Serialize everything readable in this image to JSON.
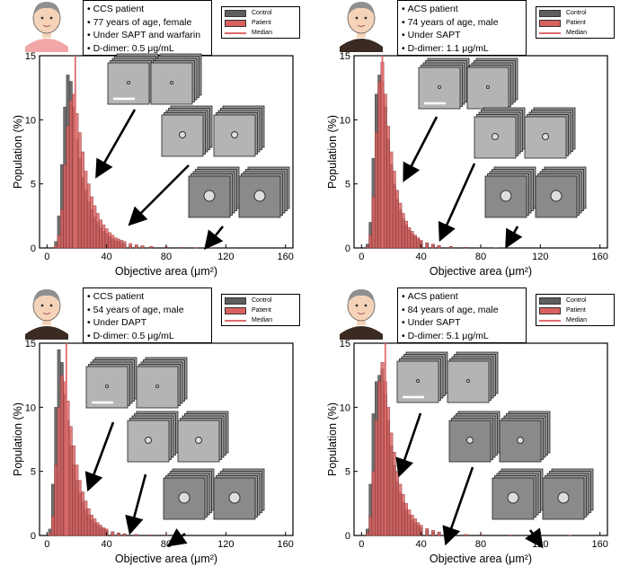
{
  "colors": {
    "control": "#5e5e5e",
    "patient": "#d9605f",
    "patient_edge": "#8a2c2c",
    "median": "#e06b6b",
    "cell_image": "#b4b4b4",
    "cell_image_dark": "#8a8a8a"
  },
  "legend": {
    "control": "Control",
    "patient": "Patient",
    "median": "Median"
  },
  "icons": [
    "elderly-woman-avatar-icon",
    "man-avatar-icon",
    "elderly-man-avatar-icon",
    "elderly-man-avatar-icon"
  ],
  "chart_data": [
    {
      "type": "bar",
      "info": [
        "CCS patient",
        "77 years of age, female",
        "Under SAPT and warfarin",
        "D-dimer: 0.5 μg/mL"
      ],
      "xlabel": "Objective area (μm²)",
      "ylabel": "Population (%)",
      "xlim": [
        -5,
        165
      ],
      "ylim": [
        0,
        15
      ],
      "xticks": [
        0,
        40,
        80,
        120,
        160
      ],
      "yticks": [
        0,
        5,
        10,
        15
      ],
      "bin_width": 2,
      "median": 19,
      "series": [
        {
          "name": "Control",
          "x": [
            6,
            8,
            10,
            12,
            14,
            16,
            18,
            20,
            22,
            24,
            26,
            28,
            30,
            32,
            34,
            36,
            38,
            40,
            42,
            44,
            46,
            48,
            50,
            52,
            56,
            60,
            64,
            70,
            80,
            90,
            100
          ],
          "values": [
            0.5,
            2.5,
            6.5,
            11.0,
            13.5,
            13.0,
            11.0,
            8.5,
            7.0,
            5.5,
            4.5,
            3.6,
            3.0,
            2.4,
            2.0,
            1.6,
            1.3,
            1.1,
            0.9,
            0.7,
            0.6,
            0.5,
            0.4,
            0.3,
            0.2,
            0.15,
            0.1,
            0.08,
            0.05,
            0.03,
            0.02
          ]
        },
        {
          "name": "Patient",
          "x": [
            6,
            8,
            10,
            12,
            14,
            16,
            18,
            20,
            22,
            24,
            26,
            28,
            30,
            32,
            34,
            36,
            38,
            40,
            42,
            44,
            46,
            48,
            50,
            52,
            56,
            60,
            64,
            70,
            80,
            90,
            100,
            110
          ],
          "values": [
            0.2,
            1.0,
            3.0,
            6.5,
            9.5,
            11.5,
            12.0,
            10.5,
            9.0,
            7.5,
            6.0,
            5.0,
            4.0,
            3.3,
            2.7,
            2.2,
            1.8,
            1.5,
            1.2,
            1.0,
            0.8,
            0.7,
            0.6,
            0.5,
            0.35,
            0.25,
            0.18,
            0.12,
            0.08,
            0.05,
            0.03,
            0.02
          ]
        }
      ]
    },
    {
      "type": "bar",
      "info": [
        "ACS patient",
        "74 years of age, male",
        "Under SAPT",
        "D-dimer: 1.1 μg/mL"
      ],
      "xlabel": "Objective area (μm²)",
      "ylabel": "Population (%)",
      "xlim": [
        -5,
        165
      ],
      "ylim": [
        0,
        15
      ],
      "xticks": [
        0,
        40,
        80,
        120,
        160
      ],
      "yticks": [
        0,
        5,
        10,
        15
      ],
      "bin_width": 2,
      "median": 14,
      "series": [
        {
          "name": "Control",
          "x": [
            4,
            6,
            8,
            10,
            12,
            14,
            16,
            18,
            20,
            22,
            24,
            26,
            28,
            30,
            32,
            34,
            36,
            38,
            40,
            44,
            48,
            52,
            60,
            70,
            80
          ],
          "values": [
            0.3,
            2.0,
            7.0,
            12.0,
            13.5,
            13.0,
            11.0,
            8.5,
            6.5,
            5.0,
            3.8,
            3.0,
            2.3,
            1.8,
            1.4,
            1.1,
            0.9,
            0.7,
            0.5,
            0.35,
            0.25,
            0.15,
            0.1,
            0.05,
            0.02
          ]
        },
        {
          "name": "Patient",
          "x": [
            4,
            6,
            8,
            10,
            12,
            14,
            16,
            18,
            20,
            22,
            24,
            26,
            28,
            30,
            32,
            34,
            36,
            38,
            40,
            44,
            48,
            52,
            60,
            70,
            80,
            90
          ],
          "values": [
            0.1,
            1.0,
            4.0,
            9.0,
            13.0,
            14.5,
            12.0,
            9.5,
            7.5,
            6.0,
            4.5,
            3.5,
            2.7,
            2.1,
            1.6,
            1.3,
            1.0,
            0.8,
            0.6,
            0.4,
            0.3,
            0.2,
            0.12,
            0.06,
            0.03,
            0.02
          ]
        }
      ]
    },
    {
      "type": "bar",
      "info": [
        "CCS patient",
        "54 years of age, male",
        "Under DAPT",
        "D-dimer: 0.5 μg/mL"
      ],
      "xlabel": "Objective area (μm²)",
      "ylabel": "Population (%)",
      "xlim": [
        -5,
        165
      ],
      "ylim": [
        0,
        15
      ],
      "xticks": [
        0,
        40,
        80,
        120,
        160
      ],
      "yticks": [
        0,
        5,
        10,
        15
      ],
      "bin_width": 2,
      "median": 13,
      "series": [
        {
          "name": "Control",
          "x": [
            2,
            4,
            6,
            8,
            10,
            12,
            14,
            16,
            18,
            20,
            22,
            24,
            26,
            28,
            30,
            32,
            34,
            36,
            38,
            40,
            44,
            48,
            52,
            60,
            70
          ],
          "values": [
            0.5,
            4.0,
            10.0,
            14.5,
            13.5,
            11.0,
            9.0,
            7.0,
            5.5,
            4.3,
            3.3,
            2.6,
            2.0,
            1.6,
            1.2,
            1.0,
            0.8,
            0.6,
            0.5,
            0.4,
            0.25,
            0.18,
            0.12,
            0.06,
            0.03
          ]
        },
        {
          "name": "Patient",
          "x": [
            2,
            4,
            6,
            8,
            10,
            12,
            14,
            16,
            18,
            20,
            22,
            24,
            26,
            28,
            30,
            32,
            34,
            36,
            38,
            40,
            44,
            48,
            52,
            60,
            70,
            80
          ],
          "values": [
            0.2,
            1.5,
            5.5,
            10.0,
            12.5,
            12.0,
            10.5,
            8.5,
            7.0,
            5.5,
            4.3,
            3.4,
            2.7,
            2.1,
            1.6,
            1.3,
            1.0,
            0.8,
            0.6,
            0.5,
            0.3,
            0.2,
            0.14,
            0.08,
            0.04,
            0.02
          ]
        }
      ]
    },
    {
      "type": "bar",
      "info": [
        "ACS patient",
        "84 years of age, male",
        "Under SAPT",
        "D-dimer: 5.1 μg/mL"
      ],
      "xlabel": "Objective area (μm²)",
      "ylabel": "Population (%)",
      "xlim": [
        -5,
        165
      ],
      "ylim": [
        0,
        15
      ],
      "xticks": [
        0,
        40,
        80,
        120,
        160
      ],
      "yticks": [
        0,
        5,
        10,
        15
      ],
      "bin_width": 2,
      "median": 16,
      "series": [
        {
          "name": "Control",
          "x": [
            4,
            6,
            8,
            10,
            12,
            14,
            16,
            18,
            20,
            22,
            24,
            26,
            28,
            30,
            32,
            34,
            36,
            38,
            40,
            44,
            48,
            52,
            60,
            70,
            80
          ],
          "values": [
            0.5,
            4.0,
            9.5,
            12.0,
            12.5,
            13.0,
            11.0,
            9.0,
            7.0,
            5.5,
            4.2,
            3.3,
            2.6,
            2.0,
            1.6,
            1.2,
            1.0,
            0.8,
            0.6,
            0.4,
            0.28,
            0.18,
            0.1,
            0.05,
            0.02
          ]
        },
        {
          "name": "Patient",
          "x": [
            4,
            6,
            8,
            10,
            12,
            14,
            16,
            18,
            20,
            22,
            24,
            26,
            28,
            30,
            32,
            34,
            36,
            38,
            40,
            44,
            48,
            52,
            60,
            70,
            80,
            100,
            120,
            140
          ],
          "values": [
            0.2,
            1.5,
            5.0,
            9.0,
            12.0,
            13.5,
            12.0,
            10.0,
            8.0,
            6.5,
            5.0,
            4.0,
            3.2,
            2.5,
            2.0,
            1.6,
            1.3,
            1.0,
            0.8,
            0.55,
            0.4,
            0.28,
            0.15,
            0.08,
            0.05,
            0.03,
            0.03,
            0.02
          ]
        }
      ]
    }
  ]
}
